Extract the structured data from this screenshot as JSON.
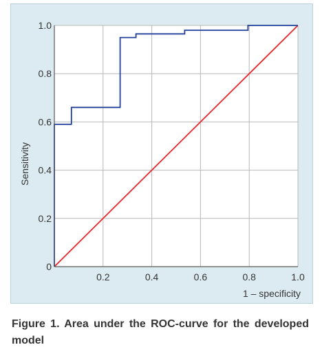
{
  "caption": "Figure 1. Area under the ROC-curve for the developed model",
  "chart_data": {
    "type": "line",
    "title": "",
    "xlabel": "1 – specificity",
    "ylabel": "Sensitivity",
    "xlim": [
      0,
      1
    ],
    "ylim": [
      0,
      1
    ],
    "x_ticks": [
      0.2,
      0.4,
      0.6,
      0.8,
      1.0
    ],
    "x_tick_labels": [
      "0.2",
      "0.4",
      "0.6",
      "0.8",
      "1.0"
    ],
    "y_ticks": [
      0,
      0.2,
      0.4,
      0.6,
      0.8,
      1.0
    ],
    "y_tick_labels": [
      "0",
      "0.2",
      "0.4",
      "0.6",
      "0.8",
      "1.0"
    ],
    "grid": true,
    "series": [
      {
        "color": "#1f3f99",
        "x": [
          0,
          0,
          0.07,
          0.07,
          0.27,
          0.27,
          0.335,
          0.335,
          0.535,
          0.535,
          0.795,
          0.795,
          1.0
        ],
        "y": [
          0,
          0.59,
          0.59,
          0.66,
          0.66,
          0.95,
          0.95,
          0.965,
          0.965,
          0.98,
          0.98,
          1.0,
          1.0
        ]
      },
      {
        "color": "#e8262c",
        "x": [
          0,
          1
        ],
        "y": [
          0,
          1
        ]
      }
    ]
  }
}
